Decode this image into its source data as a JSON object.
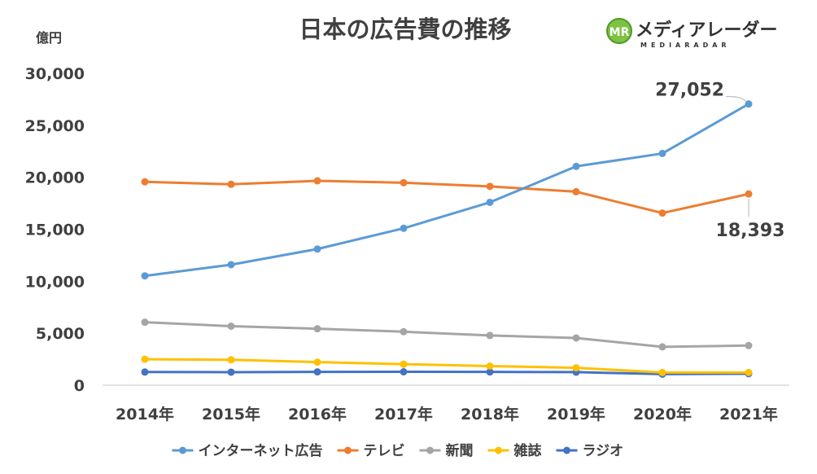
{
  "chart_data": {
    "type": "line",
    "title": "日本の広告費の推移",
    "ylabel": "億円",
    "ylim": [
      0,
      30000
    ],
    "yticks": [
      0,
      5000,
      10000,
      15000,
      20000,
      25000,
      30000
    ],
    "ytick_labels": [
      "0",
      "5,000",
      "10,000",
      "15,000",
      "20,000",
      "25,000",
      "30,000"
    ],
    "categories": [
      "2014年",
      "2015年",
      "2016年",
      "2017年",
      "2018年",
      "2019年",
      "2020年",
      "2021年"
    ],
    "grid": false,
    "legend_position": "bottom",
    "series": [
      {
        "name": "インターネット広告",
        "color": "#5B9BD5",
        "values": [
          10519,
          11594,
          13100,
          15094,
          17589,
          21048,
          22290,
          27052
        ]
      },
      {
        "name": "テレビ",
        "color": "#ED7D31",
        "values": [
          19564,
          19323,
          19657,
          19478,
          19123,
          18612,
          16559,
          18393
        ]
      },
      {
        "name": "新聞",
        "color": "#A5A5A5",
        "values": [
          6057,
          5679,
          5431,
          5147,
          4784,
          4547,
          3688,
          3815
        ]
      },
      {
        "name": "雑誌",
        "color": "#FFC000",
        "values": [
          2500,
          2443,
          2223,
          2023,
          1841,
          1675,
          1223,
          1224
        ]
      },
      {
        "name": "ラジオ",
        "color": "#4472C4",
        "values": [
          1272,
          1254,
          1285,
          1290,
          1278,
          1260,
          1066,
          1106
        ]
      }
    ],
    "annotations": [
      {
        "series": "インターネット広告",
        "category": "2021年",
        "label": "27,052"
      },
      {
        "series": "テレビ",
        "category": "2021年",
        "label": "18,393"
      }
    ]
  },
  "logo": {
    "name": "メディアレーダー",
    "sub": "MEDIARADAR",
    "mark": "MR",
    "color": "#7DC242"
  }
}
